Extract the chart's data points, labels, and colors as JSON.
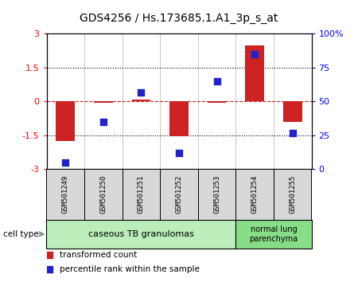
{
  "title": "GDS4256 / Hs.173685.1.A1_3p_s_at",
  "samples": [
    "GSM501249",
    "GSM501250",
    "GSM501251",
    "GSM501252",
    "GSM501253",
    "GSM501254",
    "GSM501255"
  ],
  "transformed_count": [
    -1.75,
    -0.05,
    0.1,
    -1.55,
    -0.05,
    2.5,
    -0.9
  ],
  "percentile_rank": [
    5,
    35,
    57,
    12,
    65,
    85,
    27
  ],
  "ylim_left": [
    -3,
    3
  ],
  "ylim_right": [
    0,
    100
  ],
  "yticks_left": [
    -3,
    -1.5,
    0,
    1.5,
    3
  ],
  "yticks_right": [
    0,
    25,
    50,
    75,
    100
  ],
  "bar_color": "#cc2222",
  "dot_color": "#2222cc",
  "group0_label": "caseous TB granulomas",
  "group0_color": "#bbeebb",
  "group0_count": 5,
  "group1_label": "normal lung\nparenchyma",
  "group1_color": "#88dd88",
  "group1_count": 2,
  "legend_bar_label": "transformed count",
  "legend_dot_label": "percentile rank within the sample",
  "cell_type_label": "cell type",
  "sample_bg_color": "#d8d8d8",
  "bar_width": 0.5,
  "dot_size": 35
}
